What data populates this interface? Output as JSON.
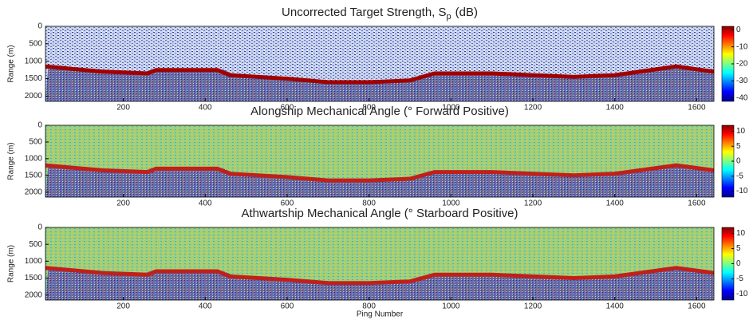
{
  "chart_data": [
    {
      "type": "echogram",
      "title": "Uncorrected Target Strength, S",
      "title_subscript": "p",
      "title_suffix": "(dB)",
      "ylabel": "Range (m)",
      "xlim": [
        10,
        1642
      ],
      "xticks": [
        200,
        400,
        600,
        800,
        1000,
        1200,
        1400,
        1600
      ],
      "ylim": [
        0,
        2150
      ],
      "yticks": [
        0,
        500,
        1000,
        1500,
        2000
      ],
      "reverse_y": true,
      "clim": [
        -42,
        2
      ],
      "cticks": [
        0,
        -10,
        -20,
        -30,
        -40
      ],
      "colormap": "jet",
      "x": [
        10,
        150,
        260,
        280,
        430,
        460,
        600,
        700,
        800,
        900,
        960,
        1100,
        1200,
        1300,
        1400,
        1550,
        1642
      ],
      "values": [
        1150,
        1300,
        1350,
        1250,
        1250,
        1400,
        1500,
        1600,
        1600,
        1550,
        1350,
        1350,
        1400,
        1450,
        1400,
        1150,
        1300
      ],
      "color": "#a00000"
    },
    {
      "type": "echogram",
      "title": "Alongship Mechanical Angle (° Forward Positive)",
      "ylabel": "Range (m)",
      "xlim": [
        10,
        1642
      ],
      "xticks": [
        200,
        400,
        600,
        800,
        1000,
        1200,
        1400,
        1600
      ],
      "ylim": [
        0,
        2150
      ],
      "yticks": [
        0,
        500,
        1000,
        1500,
        2000
      ],
      "reverse_y": true,
      "clim": [
        -12,
        12
      ],
      "cticks": [
        10,
        5,
        0,
        -5,
        -10
      ],
      "colormap": "jet",
      "x": [
        10,
        150,
        260,
        280,
        430,
        460,
        600,
        700,
        800,
        900,
        960,
        1100,
        1200,
        1300,
        1400,
        1550,
        1642
      ],
      "values": [
        1200,
        1350,
        1400,
        1300,
        1300,
        1450,
        1550,
        1650,
        1650,
        1600,
        1400,
        1400,
        1450,
        1500,
        1450,
        1200,
        1350
      ],
      "color": "#c0201a"
    },
    {
      "type": "echogram",
      "title": "Athwartship Mechanical Angle (° Starboard Positive)",
      "ylabel": "Range (m)",
      "xlabel": "Ping Number",
      "xlim": [
        10,
        1642
      ],
      "xticks": [
        200,
        400,
        600,
        800,
        1000,
        1200,
        1400,
        1600
      ],
      "ylim": [
        0,
        2150
      ],
      "yticks": [
        0,
        500,
        1000,
        1500,
        2000
      ],
      "reverse_y": true,
      "clim": [
        -12,
        12
      ],
      "cticks": [
        10,
        5,
        0,
        -5,
        -10
      ],
      "colormap": "jet",
      "x": [
        10,
        150,
        260,
        280,
        430,
        460,
        600,
        700,
        800,
        900,
        960,
        1100,
        1200,
        1300,
        1400,
        1550,
        1642
      ],
      "values": [
        1200,
        1350,
        1400,
        1300,
        1300,
        1450,
        1550,
        1650,
        1650,
        1600,
        1400,
        1400,
        1450,
        1500,
        1450,
        1200,
        1350
      ],
      "color": "#c0201a"
    }
  ]
}
